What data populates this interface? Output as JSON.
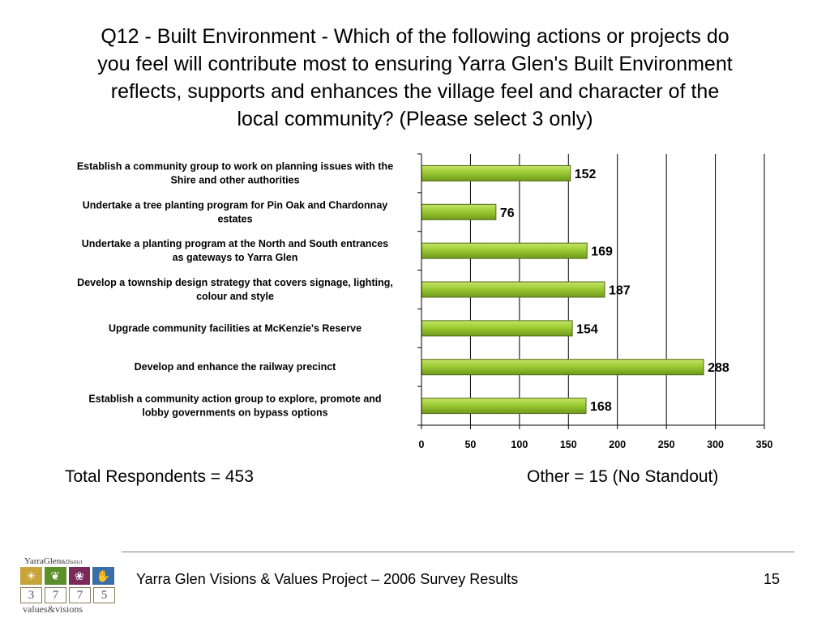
{
  "slide": {
    "title_lines": [
      "Q12 - Built Environment - Which of the following actions or projects do",
      "you feel will contribute most to ensuring Yarra Glen's Built Environment",
      "reflects, supports and enhances the village feel and character of the",
      "local community? (Please select 3 only)"
    ],
    "total_respondents": "Total Respondents = 453",
    "other_note": "Other = 15 (No Standout)",
    "footer_text": "Yarra Glen Visions & Values Project – 2006 Survey Results",
    "page_number": "15"
  },
  "logo": {
    "name": "YarraGlen",
    "suffix": "&District",
    "digits": [
      "3",
      "7",
      "7",
      "5"
    ],
    "tagline": "values&visions",
    "icons": [
      "sun-icon",
      "leaf-icon",
      "grapes-icon",
      "hand-icon"
    ],
    "colors": [
      "#c8a43a",
      "#5a8f2a",
      "#7a2a5a",
      "#3a6ea8"
    ]
  },
  "chart_data": {
    "type": "bar",
    "orientation": "horizontal",
    "categories": [
      [
        "Establish a community group to work on planning issues with the",
        "Shire and other authorities"
      ],
      [
        "Undertake a tree planting program for Pin Oak and Chardonnay",
        "estates"
      ],
      [
        "Undertake a planting program at the North and South entrances",
        "as gateways to Yarra Glen"
      ],
      [
        "Develop a township design strategy that covers signage, lighting,",
        "colour and style"
      ],
      [
        "Upgrade community facilities at McKenzie's Reserve"
      ],
      [
        "Develop and enhance the railway precinct"
      ],
      [
        "Establish a community action group to explore, promote and",
        "lobby governments on bypass options"
      ]
    ],
    "values": [
      152,
      76,
      169,
      187,
      154,
      288,
      168
    ],
    "xlim": [
      0,
      350
    ],
    "xticks": [
      0,
      50,
      100,
      150,
      200,
      250,
      300,
      350
    ],
    "grid": true,
    "bar_color": "#99cc33",
    "bar_edge_color": "#556b1a"
  }
}
